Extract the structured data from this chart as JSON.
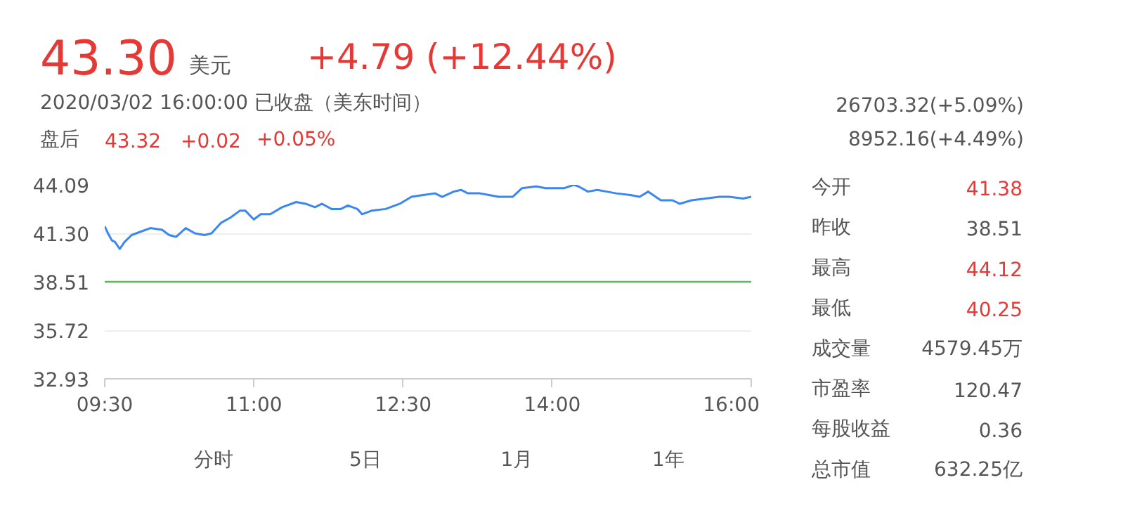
{
  "chart_data": {
    "type": "line",
    "x": [
      9.5,
      9.533,
      9.571,
      9.604,
      9.651,
      9.699,
      9.77,
      9.864,
      9.959,
      10.077,
      10.148,
      10.219,
      10.314,
      10.408,
      10.503,
      10.574,
      10.668,
      10.763,
      10.858,
      10.914,
      10.999,
      11.07,
      11.165,
      11.283,
      11.425,
      11.52,
      11.614,
      11.685,
      11.78,
      11.874,
      11.945,
      12.04,
      12.087,
      12.182,
      12.324,
      12.466,
      12.584,
      12.702,
      12.821,
      12.892,
      13.01,
      13.081,
      13.152,
      13.27,
      13.365,
      13.459,
      13.601,
      13.696,
      13.838,
      13.932,
      14.122,
      14.216,
      14.263,
      14.358,
      14.452,
      14.547,
      14.642,
      14.784,
      14.878,
      14.964,
      15.091,
      15.209,
      15.28,
      15.399,
      15.541,
      15.683,
      15.777,
      15.919,
      16.0
    ],
    "series": [
      {
        "color": "#3a87f0",
        "values": [
          41.7,
          41.3,
          40.9,
          40.8,
          40.4,
          40.8,
          41.2,
          41.4,
          41.6,
          41.5,
          41.2,
          41.1,
          41.6,
          41.3,
          41.2,
          41.3,
          41.9,
          42.2,
          42.6,
          42.6,
          42.1,
          42.4,
          42.4,
          42.8,
          43.1,
          43.0,
          42.8,
          43.0,
          42.7,
          42.7,
          42.9,
          42.7,
          42.4,
          42.6,
          42.7,
          43.0,
          43.4,
          43.5,
          43.6,
          43.4,
          43.7,
          43.8,
          43.6,
          43.6,
          43.5,
          43.4,
          43.4,
          43.9,
          44.0,
          43.9,
          43.9,
          44.09,
          44.0,
          43.7,
          43.8,
          43.7,
          43.6,
          43.5,
          43.4,
          43.7,
          43.2,
          43.2,
          43.0,
          43.2,
          43.3,
          43.4,
          43.4,
          43.3,
          43.4
        ]
      }
    ],
    "xlim": [
      9.5,
      16
    ],
    "xticks": [
      {
        "value": 9.5,
        "label": "09:30"
      },
      {
        "value": 11,
        "label": "11:00"
      },
      {
        "value": 12.5,
        "label": "12:30"
      },
      {
        "value": 14,
        "label": "14:00"
      },
      {
        "value": 16,
        "label": "16:00"
      }
    ],
    "ylim": [
      32.93,
      44.09
    ],
    "yticks": [
      32.93,
      35.72,
      38.51,
      {
        "value": 41.3,
        "label": "41.30"
      },
      44.09
    ],
    "grid": "y",
    "ref_lines": [
      {
        "axis": "y",
        "value": 38.51,
        "color": "#5cb85c"
      }
    ],
    "annotations": [
      "43.30",
      "美元",
      "+4.79 (+12.44%)",
      "2020/03/02 16:00:00  已收盘（美东时间）",
      "盘后",
      "43.32",
      "+0.02",
      "+0.05%",
      "26703.32(+5.09%)",
      "8952.16(+4.49%)",
      "今开",
      "41.38",
      "昨收",
      "38.51",
      "最高",
      "44.12",
      "最低",
      "40.25",
      "成交量",
      "4579.45万",
      "市盈率",
      "120.47",
      "每股收益",
      "0.36",
      "总市值",
      "632.25亿",
      "分时",
      "5日",
      "1月",
      "1年"
    ]
  }
}
